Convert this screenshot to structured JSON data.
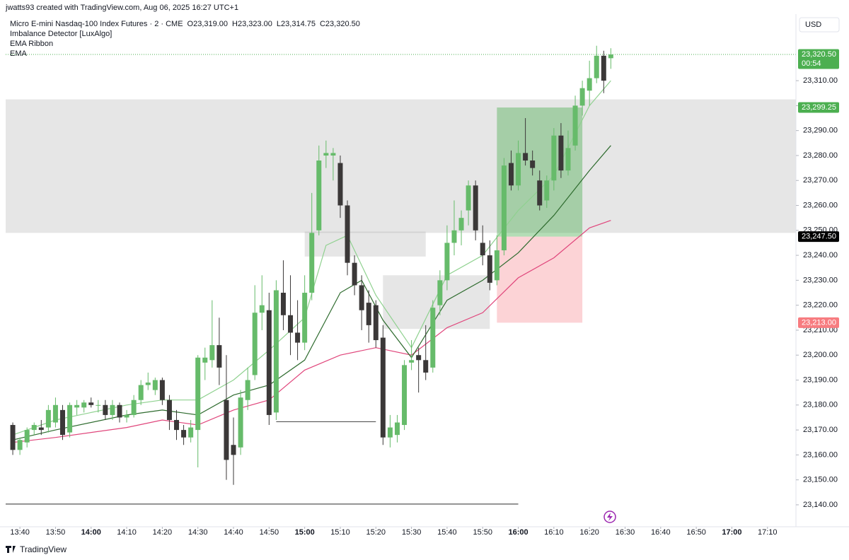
{
  "header": {
    "credit": "jwatts93 created with TradingView.com, Aug 06, 2025 16:27 UTC+1",
    "currency": "USD",
    "brand": "TradingView"
  },
  "chart_data": {
    "type": "candlestick",
    "symbol": "Micro E-mini Nasdaq-100 Index Futures · 2 · CME",
    "ohlc_legend": [
      "O23,319.00",
      "H23,323.00",
      "L23,314.75",
      "C23,320.50"
    ],
    "indicators": [
      "Imbalance Detector [LuxAlgo]",
      "EMA Ribbon",
      "EMA"
    ],
    "x": [
      "13:38",
      "13:40",
      "13:42",
      "13:44",
      "13:46",
      "13:48",
      "13:50",
      "13:52",
      "13:54",
      "13:56",
      "13:58",
      "14:00",
      "14:02",
      "14:04",
      "14:06",
      "14:08",
      "14:10",
      "14:12",
      "14:14",
      "14:16",
      "14:18",
      "14:20",
      "14:22",
      "14:24",
      "14:26",
      "14:28",
      "14:30",
      "14:32",
      "14:34",
      "14:36",
      "14:38",
      "14:40",
      "14:42",
      "14:44",
      "14:46",
      "14:48",
      "14:50",
      "14:52",
      "14:54",
      "14:56",
      "14:58",
      "15:00",
      "15:02",
      "15:04",
      "15:06",
      "15:08",
      "15:10",
      "15:12",
      "15:14",
      "15:16",
      "15:18",
      "15:20",
      "15:22",
      "15:24",
      "15:26",
      "15:28",
      "15:30",
      "15:32",
      "15:34",
      "15:36",
      "15:38",
      "15:40",
      "15:42",
      "15:44",
      "15:46",
      "15:48",
      "15:50",
      "15:52",
      "15:54",
      "15:56",
      "15:58",
      "16:00",
      "16:02",
      "16:04",
      "16:06",
      "16:08",
      "16:10",
      "16:12",
      "16:14",
      "16:16",
      "16:18",
      "16:20",
      "16:22",
      "16:24",
      "16:26"
    ],
    "open": [
      23172,
      23162,
      23165,
      23170,
      23171,
      23171,
      23173,
      23178,
      23169,
      23179,
      23179,
      23181,
      23180,
      23180,
      23176,
      23180,
      23175,
      23176,
      23182,
      23188,
      23186,
      23190,
      23182,
      23174,
      23170,
      23167,
      23170,
      23197,
      23198,
      23204,
      23182,
      23164,
      23163,
      23182,
      23192,
      23217,
      23218,
      23177,
      23225,
      23216,
      23209,
      23205,
      23225,
      23250,
      23280,
      23280,
      23277,
      23260,
      23237,
      23228,
      23221,
      23220,
      23207,
      23167,
      23168,
      23172,
      23197,
      23200,
      23198,
      23195,
      23220,
      23230,
      23245,
      23250,
      23258,
      23268,
      23245,
      23240,
      23230,
      23242,
      23277,
      23268,
      23281,
      23278,
      23270,
      23262,
      23270,
      23288,
      23274,
      23284,
      23300,
      23306,
      23311,
      23320,
      23319
    ],
    "high": [
      23173,
      23167,
      23171,
      23173,
      23174,
      23180,
      23183,
      23180,
      23181,
      23182,
      23182,
      23183,
      23182,
      23182,
      23182,
      23181,
      23178,
      23184,
      23190,
      23193,
      23191,
      23191,
      23184,
      23178,
      23172,
      23174,
      23200,
      23203,
      23222,
      23215,
      23200,
      23175,
      23186,
      23195,
      23228,
      23232,
      23225,
      23230,
      23238,
      23232,
      23222,
      23232,
      23265,
      23284,
      23286,
      23283,
      23280,
      23262,
      23240,
      23232,
      23226,
      23222,
      23212,
      23176,
      23176,
      23198,
      23206,
      23203,
      23212,
      23222,
      23234,
      23252,
      23262,
      23258,
      23270,
      23270,
      23252,
      23246,
      23248,
      23279,
      23282,
      23286,
      23295,
      23282,
      23274,
      23272,
      23291,
      23293,
      23290,
      23304,
      23310,
      23318,
      23324,
      23322,
      23323
    ],
    "low": [
      23160,
      23160,
      23163,
      23168,
      23168,
      23169,
      23171,
      23166,
      23167,
      23176,
      23177,
      23179,
      23177,
      23174,
      23174,
      23173,
      23173,
      23175,
      23180,
      23186,
      23184,
      23180,
      23170,
      23166,
      23164,
      23165,
      23155,
      23190,
      23195,
      23188,
      23150,
      23148,
      23160,
      23178,
      23190,
      23210,
      23172,
      23174,
      23210,
      23200,
      23198,
      23202,
      23222,
      23248,
      23275,
      23270,
      23255,
      23232,
      23224,
      23210,
      23205,
      23203,
      23164,
      23163,
      23165,
      23170,
      23194,
      23185,
      23190,
      23193,
      23216,
      23226,
      23240,
      23244,
      23252,
      23246,
      23236,
      23226,
      23228,
      23240,
      23266,
      23266,
      23276,
      23272,
      23258,
      23259,
      23266,
      23271,
      23272,
      23282,
      23296,
      23300,
      23309,
      23305,
      23314.75
    ],
    "close": [
      23162,
      23166,
      23170,
      23172,
      23170,
      23178,
      23180,
      23168,
      23180,
      23180,
      23181,
      23180,
      23180,
      23176,
      23180,
      23175,
      23176,
      23182,
      23188,
      23189,
      23190,
      23182,
      23174,
      23170,
      23167,
      23171,
      23199,
      23199,
      23204,
      23195,
      23158,
      23160,
      23183,
      23190,
      23217,
      23220,
      23176,
      23226,
      23216,
      23209,
      23205,
      23225,
      23249,
      23278,
      23281,
      23281,
      23260,
      23237,
      23228,
      23218,
      23212,
      23206,
      23167,
      23171,
      23173,
      23196,
      23198,
      23198,
      23193,
      23219,
      23230,
      23245,
      23250,
      23255,
      23268,
      23250,
      23240,
      23229,
      23242,
      23276,
      23268,
      23281,
      23278,
      23275,
      23260,
      23270,
      23288,
      23274,
      23283,
      23300,
      23307,
      23311,
      23320,
      23310,
      23320.5
    ],
    "up_color": "#66bb6a",
    "down_color": "#3b3838",
    "lines": [
      {
        "color": "#e0457b",
        "x": [
          "13:38",
          "13:50",
          "14:10",
          "14:20",
          "14:30",
          "14:40",
          "14:50",
          "15:00",
          "15:10",
          "15:20",
          "15:30",
          "15:40",
          "15:50",
          "16:00",
          "16:10",
          "16:20",
          "16:26"
        ],
        "values": [
          23165,
          23167,
          23171,
          23174,
          23172,
          23178,
          23182,
          23194,
          23200,
          23203,
          23200,
          23211,
          23217,
          23231,
          23239,
          23251,
          23254
        ]
      },
      {
        "color": "#2e6b2e",
        "x": [
          "13:38",
          "13:50",
          "14:10",
          "14:20",
          "14:30",
          "14:40",
          "14:50",
          "15:00",
          "15:10",
          "15:16",
          "15:22",
          "15:30",
          "15:40",
          "15:50",
          "16:00",
          "16:10",
          "16:20",
          "16:26"
        ],
        "values": [
          23166,
          23170,
          23176,
          23178,
          23176,
          23184,
          23188,
          23198,
          23225,
          23230,
          23214,
          23199,
          23222,
          23230,
          23241,
          23256,
          23274,
          23284
        ]
      },
      {
        "color": "#8fd18f",
        "x": [
          "13:38",
          "13:50",
          "14:10",
          "14:20",
          "14:30",
          "14:40",
          "14:50",
          "15:00",
          "15:06",
          "15:12",
          "15:20",
          "15:30",
          "15:40",
          "15:50",
          "16:00",
          "16:10",
          "16:20",
          "16:26"
        ],
        "values": [
          23168,
          23174,
          23180,
          23182,
          23182,
          23190,
          23202,
          23215,
          23244,
          23248,
          23224,
          23203,
          23232,
          23240,
          23258,
          23272,
          23300,
          23310
        ]
      }
    ],
    "band": {
      "y": [
        23249,
        23302.5
      ],
      "color": "rgba(140,140,140,0.22)"
    },
    "zones": [
      {
        "x": [
          "15:00",
          "15:34"
        ],
        "y": [
          23239.5,
          23249.5
        ],
        "color": "rgba(140,140,140,0.22)"
      },
      {
        "x": [
          "15:22",
          "15:52"
        ],
        "y": [
          23210.5,
          23232
        ],
        "color": "rgba(140,140,140,0.22)"
      },
      {
        "x": [
          "15:54",
          "16:18"
        ],
        "y": [
          23247.5,
          23299.25
        ],
        "color": "rgba(76,175,80,0.42)"
      },
      {
        "x": [
          "15:54",
          "16:18"
        ],
        "y": [
          23213,
          23247.5
        ],
        "color": "rgba(242,54,69,0.22)"
      }
    ],
    "hlines": [
      {
        "y": 23173.3,
        "x": [
          "14:52",
          "15:20"
        ]
      },
      {
        "y": 23140.3,
        "x": [
          "13:36",
          "16:00"
        ]
      }
    ],
    "xlim": [
      "13:36",
      "17:18"
    ],
    "xticks": [
      "13:40",
      "13:50",
      "14:00",
      "14:10",
      "14:20",
      "14:30",
      "14:40",
      "14:50",
      "15:00",
      "15:10",
      "15:20",
      "15:30",
      "15:40",
      "15:50",
      "16:00",
      "16:10",
      "16:20",
      "16:30",
      "16:40",
      "16:50",
      "17:00",
      "17:10"
    ],
    "ylim": [
      23131.2,
      23336.1
    ],
    "yticks": [
      {
        "value": 23140,
        "label": "23,140.00"
      },
      {
        "value": 23150,
        "label": "23,150.00"
      },
      {
        "value": 23160,
        "label": "23,160.00"
      },
      {
        "value": 23170,
        "label": "23,170.00"
      },
      {
        "value": 23180,
        "label": "23,180.00"
      },
      {
        "value": 23190,
        "label": "23,190.00"
      },
      {
        "value": 23200,
        "label": "23,200.00"
      },
      {
        "value": 23210,
        "label": "23,210.00"
      },
      {
        "value": 23220,
        "label": "23,220.00"
      },
      {
        "value": 23230,
        "label": "23,230.00"
      },
      {
        "value": 23240,
        "label": "23,240.00"
      },
      {
        "value": 23250,
        "label": "23,250.00"
      },
      {
        "value": 23260,
        "label": "23,260.00"
      },
      {
        "value": 23270,
        "label": "23,270.00"
      },
      {
        "value": 23280,
        "label": "23,280.00"
      },
      {
        "value": 23290,
        "label": "23,290.00"
      },
      {
        "value": 23300,
        "label": "23,300.00"
      },
      {
        "value": 23310,
        "label": "23,310.00"
      }
    ],
    "price_labels": [
      {
        "value": 23320.5,
        "label": "23,320.50",
        "countdown": "00:54",
        "color": "#4caf50"
      },
      {
        "value": 23299.25,
        "label": "23,299.25",
        "color": "#4caf50"
      },
      {
        "value": 23247.5,
        "label": "23,247.50",
        "color": "#000000"
      },
      {
        "value": 23213,
        "label": "23,213.00",
        "color": "#f77c80"
      }
    ]
  }
}
